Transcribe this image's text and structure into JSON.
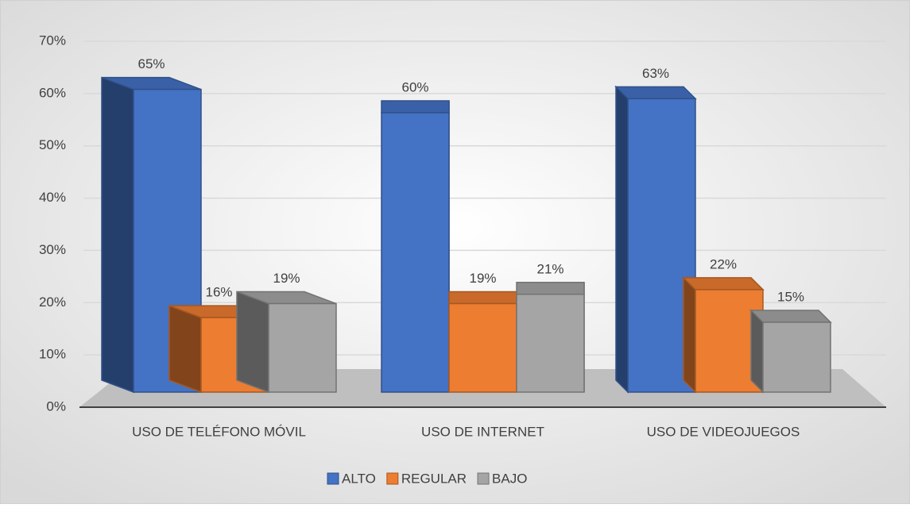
{
  "chart_data": {
    "type": "bar3d",
    "categories": [
      "USO DE TELÉFONO MÓVIL",
      "USO DE INTERNET",
      "USO DE VIDEOJUEGOS"
    ],
    "series": [
      {
        "name": "ALTO",
        "color": "#4472c4",
        "values": [
          65,
          60,
          63
        ],
        "value_labels": [
          "65%",
          "60%",
          "63%"
        ]
      },
      {
        "name": "REGULAR",
        "color": "#ed7d31",
        "values": [
          16,
          19,
          22
        ],
        "value_labels": [
          "16%",
          "19%",
          "22%"
        ]
      },
      {
        "name": "BAJO",
        "color": "#a5a5a5",
        "values": [
          19,
          21,
          15
        ],
        "value_labels": [
          "19%",
          "21%",
          "15%"
        ]
      }
    ],
    "ylim": [
      0,
      70
    ],
    "yticks": [
      {
        "value": 0,
        "label": "0%"
      },
      {
        "value": 10,
        "label": "10%"
      },
      {
        "value": 20,
        "label": "20%"
      },
      {
        "value": 30,
        "label": "30%"
      },
      {
        "value": 40,
        "label": "40%"
      },
      {
        "value": 50,
        "label": "50%"
      },
      {
        "value": 60,
        "label": "60%"
      },
      {
        "value": 70,
        "label": "70%"
      }
    ],
    "grid": true,
    "legend": "bottom"
  }
}
